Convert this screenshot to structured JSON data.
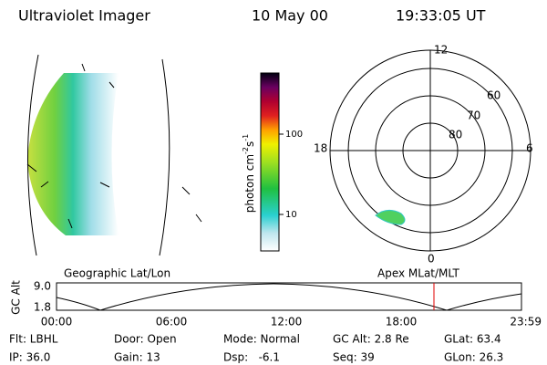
{
  "header": {
    "title": "Ultraviolet Imager",
    "date": "10 May 00",
    "time": "19:33:05 UT"
  },
  "colorbar": {
    "label": {
      "base": "photon cm",
      "exp1": "-2",
      "unit2": "s",
      "exp2": "-1"
    },
    "ticks": [
      "100",
      "10"
    ]
  },
  "polar_plot": {
    "mlt_labels": [
      "12",
      "18",
      "6",
      "0"
    ],
    "lat_labels": [
      "60",
      "70",
      "80"
    ]
  },
  "projections": {
    "left": "Geographic Lat/Lon",
    "right": "Apex MLat/MLT"
  },
  "altitude_plot": {
    "axis_label": "GC Alt",
    "y_labels": [
      "9.0",
      "1.8"
    ],
    "time_labels": [
      "00:00",
      "06:00",
      "12:00",
      "18:00",
      "23:59"
    ]
  },
  "info": {
    "rows": [
      [
        "Flt: LBHL",
        "Door: Open",
        "Mode: Normal",
        "GC Alt: 2.8 Re",
        "GLat: 63.4"
      ],
      [
        "IP: 36.0",
        "Gain: 13",
        "Dsp:   -6.1",
        "Seq: 39",
        "GLon: 26.3"
      ]
    ]
  }
}
